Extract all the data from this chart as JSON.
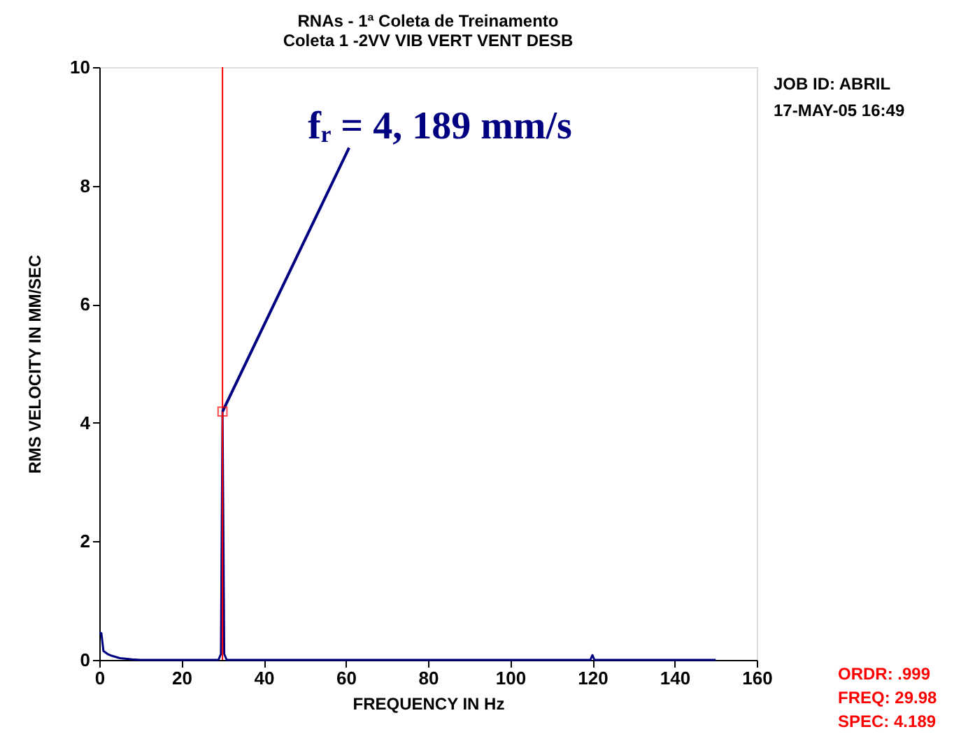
{
  "chart_data": {
    "type": "line",
    "title": "RNAs - 1ª Coleta de Treinamento",
    "subtitle": "Coleta 1  -2VV    VIB VERT VENT DESB",
    "xlabel": "FREQUENCY IN Hz",
    "ylabel": "RMS VELOCITY IN MM/SEC",
    "x": [
      0,
      0.5,
      1,
      2,
      3,
      5,
      8,
      10,
      29,
      29.6,
      29.98,
      30.4,
      31,
      119.5,
      120,
      120.5,
      150
    ],
    "series": [
      {
        "color": "#000080",
        "values": [
          0.45,
          0.45,
          0.15,
          0.1,
          0.07,
          0.03,
          0.01,
          0,
          0,
          0.1,
          4.189,
          0.1,
          0,
          0,
          0.08,
          0,
          0
        ]
      }
    ],
    "xlim": [
      0,
      160
    ],
    "ylim": [
      0,
      10
    ],
    "xticks": [
      0,
      20,
      40,
      60,
      80,
      100,
      120,
      140,
      160
    ],
    "yticks": [
      0,
      2,
      4,
      6,
      8,
      10
    ],
    "grid": false,
    "marker": "none",
    "line_style": "solid",
    "ref_lines": [
      {
        "axis": "x",
        "value": 29.98,
        "color": "#ff0000"
      }
    ],
    "annotations": [
      {
        "text": "fᵣ = 4, 189 mm/s",
        "x": 29.98,
        "y": 4.189
      },
      "JOB ID:  ABRIL",
      "17-MAY-05 16:49",
      "ORDR:   .999",
      "FREQ:  29.98",
      "SPEC:  4.189"
    ]
  }
}
